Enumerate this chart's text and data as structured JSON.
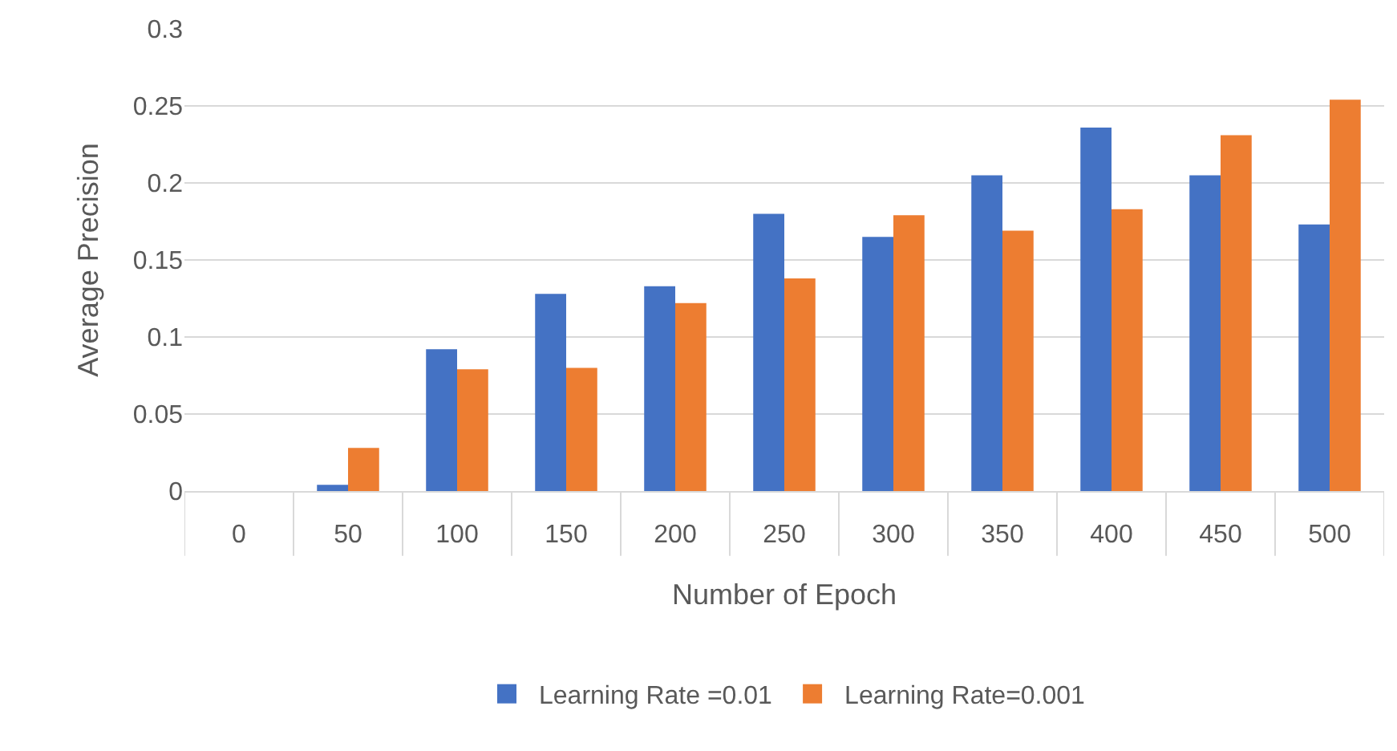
{
  "chart_data": {
    "type": "bar",
    "xlabel": "Number of Epoch",
    "ylabel": "Average Precision",
    "categories": [
      "0",
      "50",
      "100",
      "150",
      "200",
      "250",
      "300",
      "350",
      "400",
      "450",
      "500"
    ],
    "series": [
      {
        "name": "Learning Rate =0.01",
        "color": "#4472c4",
        "values": [
          0,
          0.004,
          0.092,
          0.128,
          0.133,
          0.18,
          0.165,
          0.205,
          0.236,
          0.205,
          0.173
        ]
      },
      {
        "name": "Learning Rate=0.001",
        "color": "#ed7d31",
        "values": [
          0,
          0.028,
          0.079,
          0.08,
          0.122,
          0.138,
          0.179,
          0.169,
          0.183,
          0.231,
          0.254
        ]
      }
    ],
    "ylim": [
      0,
      0.3
    ],
    "yticks": [
      0,
      0.05,
      0.1,
      0.15,
      0.2,
      0.25,
      0.3
    ],
    "grid": "y",
    "legend": "bottom"
  }
}
